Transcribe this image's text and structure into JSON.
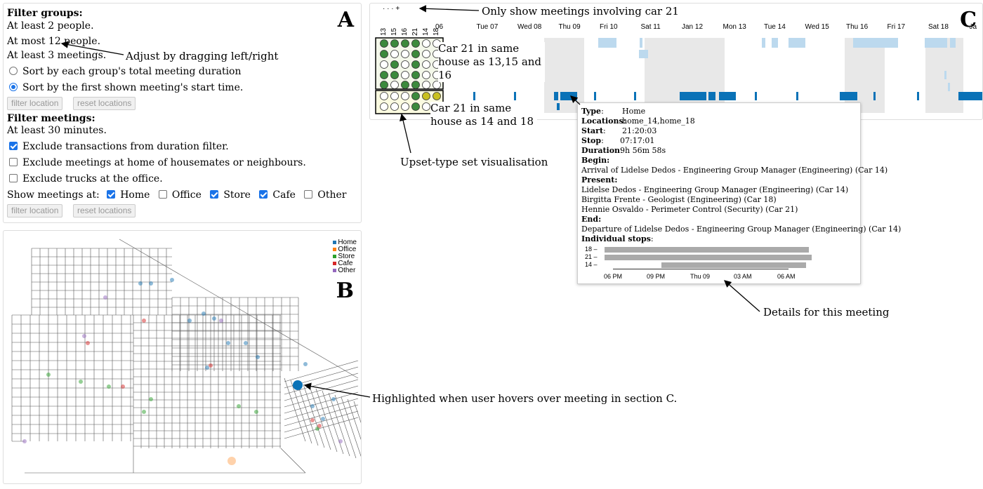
{
  "panelA": {
    "letter": "A",
    "filter_groups_heading": "Filter groups:",
    "min_people": "At least 2 people.",
    "max_people": "At most 12 people.",
    "min_meetings": "At least 3 meetings.",
    "sort_duration_label": "Sort by each group's total meeting duration",
    "sort_start_label": "Sort by the first shown meeting's start time.",
    "filter_location_label": "filter location",
    "reset_locations_label": "reset locations",
    "filter_meetings_heading": "Filter meetings:",
    "min_minutes": "At least 30 minutes.",
    "exclude_transactions_label": "Exclude transactions from duration filter.",
    "exclude_home_label": "Exclude meetings at home of housemates or neighbours.",
    "exclude_trucks_label": "Exclude trucks at the office.",
    "show_meetings_label": "Show meetings at:",
    "types": [
      {
        "label": "Home",
        "checked": true
      },
      {
        "label": "Office",
        "checked": false
      },
      {
        "label": "Store",
        "checked": true
      },
      {
        "label": "Cafe",
        "checked": true
      },
      {
        "label": "Other",
        "checked": false
      }
    ],
    "drag_annotation": "Adjust by dragging left/right"
  },
  "panelB": {
    "letter": "B",
    "legend": [
      {
        "label": "Home",
        "color": "#1f77b4"
      },
      {
        "label": "Office",
        "color": "#ff7f0e"
      },
      {
        "label": "Store",
        "color": "#2ca02c"
      },
      {
        "label": "Cafe",
        "color": "#d62728"
      },
      {
        "label": "Other",
        "color": "#9467bd"
      }
    ],
    "hover_annotation": "Highlighted when user hovers over meeting in section C."
  },
  "panelC": {
    "letter": "C",
    "top_annotation": "Only show meetings involving car 21",
    "top_marker": "· · · +",
    "set_labels": [
      "13",
      "15",
      "16",
      "21",
      "14",
      "18"
    ],
    "set_rows_group1": [
      [
        true,
        true,
        true,
        true,
        false,
        false
      ],
      [
        true,
        false,
        false,
        true,
        false,
        false
      ],
      [
        false,
        true,
        false,
        true,
        false,
        false
      ],
      [
        true,
        true,
        false,
        true,
        false,
        false
      ],
      [
        true,
        false,
        true,
        true,
        false,
        false
      ]
    ],
    "set_rows_group2": [
      [
        false,
        false,
        false,
        true,
        true,
        true
      ],
      [
        false,
        false,
        false,
        true,
        false,
        false
      ]
    ],
    "dates": [
      "06",
      "Tue 07",
      "Wed 08",
      "Thu 09",
      "Fri 10",
      "Sat 11",
      "Jan 12",
      "Mon 13",
      "Tue 14",
      "Wed 15",
      "Thu 16",
      "Fri 17",
      "Sat 18",
      "Ja"
    ],
    "callout1": "Car 21 in same house as 13,15 and 16",
    "callout2": "Car 21 in same house as 14 and 18",
    "upset_annotation": "Upset-type set visualisation",
    "details_annotation": "Details for this meeting",
    "colors": {
      "home": "#0a72b7",
      "home_light": "#bcd9ee",
      "weekend": "#e8e8e8",
      "set_fill": "#3c8a3c",
      "set_fill2": "#c8c020"
    }
  },
  "tooltip": {
    "type_key": "Type",
    "type_val": "Home",
    "locations_key": "Locations",
    "locations_val": "home_14,home_18",
    "start_key": "Start",
    "start_val": "21:20:03",
    "stop_key": "Stop",
    "stop_val": "07:17:01",
    "duration_key": "Duration",
    "duration_val": "9h 56m 58s",
    "begin_key": "Begin:",
    "begin_val": "Arrival of Lidelse Dedos - Engineering Group Manager (Engineering) (Car 14)",
    "present_key": "Present:",
    "present": [
      "Lidelse Dedos - Engineering Group Manager (Engineering) (Car 14)",
      "Birgitta Frente - Geologist (Engineering) (Car 18)",
      "Hennie Osvaldo - Perimeter Control (Security) (Car 21)"
    ],
    "end_key": "End:",
    "end_val": "Departure of Lidelse Dedos - Engineering Group Manager (Engineering) (Car 14)",
    "stops_key": "Individual stops",
    "stop_rows": [
      "18 –",
      "21 –",
      "14 –"
    ],
    "axis_ticks": [
      "06 PM",
      "09 PM",
      "Thu 09",
      "03 AM",
      "06 AM"
    ]
  }
}
